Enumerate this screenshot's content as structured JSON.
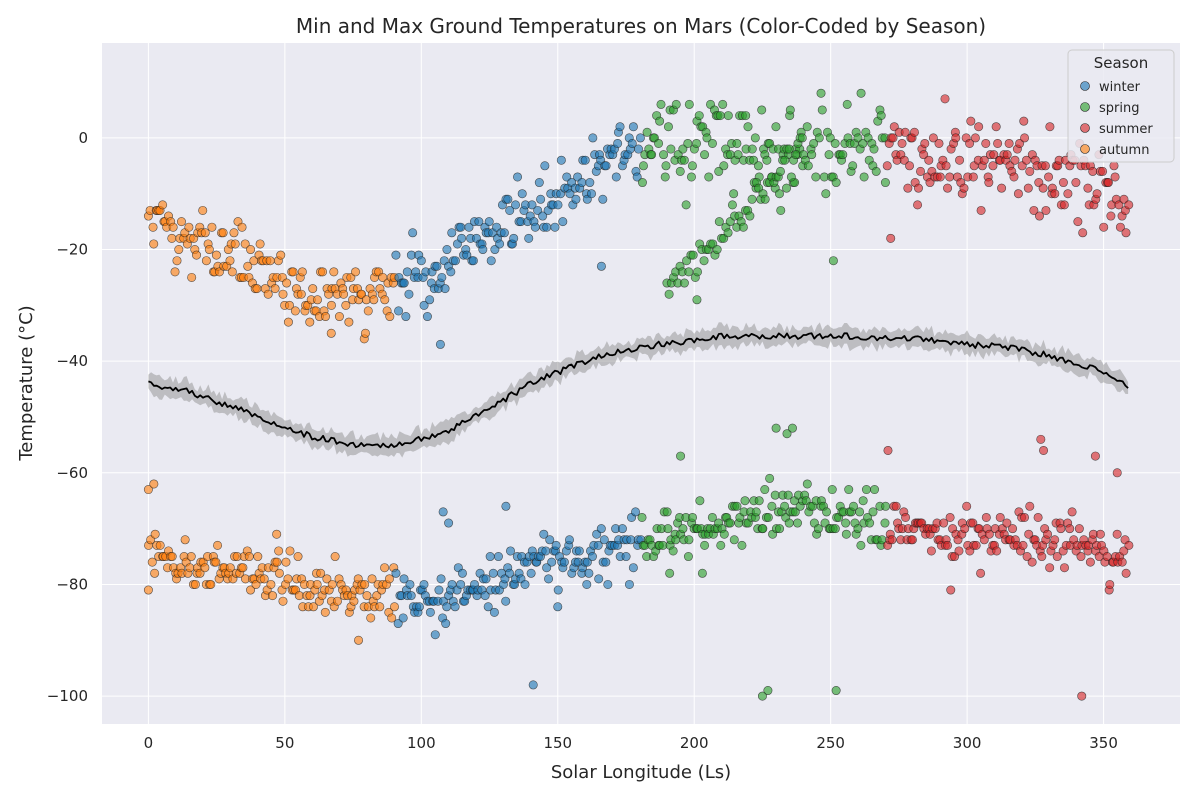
{
  "chart_data": {
    "type": "scatter",
    "title": "Min and Max Ground Temperatures on Mars (Color-Coded by Season)",
    "xlabel": "Solar Longitude (Ls)",
    "ylabel": "Temperature (°C)",
    "xlim": [
      -17,
      378
    ],
    "ylim": [
      -105,
      17
    ],
    "xticks": [
      0,
      50,
      100,
      150,
      200,
      250,
      300,
      350
    ],
    "yticks": [
      -100,
      -80,
      -60,
      -40,
      -20,
      0
    ],
    "grid": true,
    "legend": {
      "title": "Season",
      "placement": "top-right"
    },
    "series": [
      {
        "name": "winter",
        "color": "#1f77b4",
        "ls_range": [
          90,
          180
        ]
      },
      {
        "name": "spring",
        "color": "#2ca02c",
        "ls_range": [
          180,
          270
        ]
      },
      {
        "name": "summer",
        "color": "#d62728",
        "ls_range": [
          270,
          360
        ]
      },
      {
        "name": "autumn",
        "color": "#ff7f0e",
        "ls_range": [
          0,
          90
        ]
      }
    ],
    "max_temp_profile": {
      "ls": [
        0,
        20,
        40,
        60,
        80,
        90,
        100,
        120,
        140,
        160,
        175,
        185,
        200,
        220,
        240,
        260,
        270,
        290,
        310,
        330,
        350,
        359
      ],
      "temp": [
        -15,
        -20,
        -24,
        -28,
        -29,
        -27,
        -25,
        -19,
        -13,
        -7,
        -2,
        0,
        -1,
        -2,
        -2,
        -2,
        -2,
        -4,
        -4,
        -6,
        -9,
        -12
      ]
    },
    "min_temp_profile": {
      "ls": [
        0,
        20,
        40,
        60,
        80,
        90,
        100,
        120,
        140,
        160,
        175,
        185,
        200,
        220,
        240,
        260,
        270,
        290,
        310,
        330,
        350,
        359
      ],
      "temp": [
        -75,
        -77,
        -78,
        -80,
        -81,
        -82,
        -83,
        -80,
        -77,
        -74,
        -73,
        -72,
        -70,
        -68,
        -67,
        -68,
        -70,
        -71,
        -71,
        -72,
        -74,
        -75
      ]
    },
    "mean_line": {
      "ls": [
        0,
        15,
        30,
        45,
        60,
        75,
        90,
        100,
        110,
        120,
        130,
        140,
        150,
        160,
        170,
        180,
        195,
        210,
        225,
        240,
        255,
        270,
        285,
        300,
        315,
        330,
        345,
        359
      ],
      "temp": [
        -44,
        -45.5,
        -48,
        -51,
        -53.5,
        -55,
        -55,
        -54,
        -52.5,
        -49.5,
        -47,
        -44,
        -42,
        -40,
        -38.5,
        -37.5,
        -36.5,
        -35.5,
        -35.5,
        -35.5,
        -35.5,
        -36,
        -36,
        -37,
        -37.5,
        -39,
        -41,
        -44.5
      ],
      "band": 1.5
    },
    "outliers": [
      {
        "series": "autumn",
        "ls": 0,
        "temp": -63
      },
      {
        "series": "autumn",
        "ls": 2,
        "temp": -62
      },
      {
        "series": "autumn",
        "ls": 0,
        "temp": -81
      },
      {
        "series": "autumn",
        "ls": 47,
        "temp": -71
      },
      {
        "series": "autumn",
        "ls": 77,
        "temp": -90
      },
      {
        "series": "autumn",
        "ls": 67,
        "temp": -35
      },
      {
        "series": "winter",
        "ls": 141,
        "temp": -98
      },
      {
        "series": "winter",
        "ls": 108,
        "temp": -67
      },
      {
        "series": "winter",
        "ls": 110,
        "temp": -69
      },
      {
        "series": "winter",
        "ls": 131,
        "temp": -66
      },
      {
        "series": "winter",
        "ls": 150,
        "temp": -84
      },
      {
        "series": "winter",
        "ls": 107,
        "temp": -37
      },
      {
        "series": "winter",
        "ls": 166,
        "temp": -23
      },
      {
        "series": "spring",
        "ls": 225,
        "temp": -100
      },
      {
        "series": "spring",
        "ls": 227,
        "temp": -99
      },
      {
        "series": "spring",
        "ls": 252,
        "temp": -99
      },
      {
        "series": "spring",
        "ls": 230,
        "temp": -52
      },
      {
        "series": "spring",
        "ls": 234,
        "temp": -53
      },
      {
        "series": "spring",
        "ls": 236,
        "temp": -52
      },
      {
        "series": "spring",
        "ls": 251,
        "temp": -22
      },
      {
        "series": "spring",
        "ls": 201,
        "temp": -29
      },
      {
        "series": "spring",
        "ls": 195,
        "temp": -57
      },
      {
        "series": "spring",
        "ls": 191,
        "temp": -78
      },
      {
        "series": "spring",
        "ls": 203,
        "temp": -78
      },
      {
        "series": "summer",
        "ls": 271,
        "temp": -56
      },
      {
        "series": "summer",
        "ls": 327,
        "temp": -54
      },
      {
        "series": "summer",
        "ls": 328,
        "temp": -56
      },
      {
        "series": "summer",
        "ls": 347,
        "temp": -57
      },
      {
        "series": "summer",
        "ls": 355,
        "temp": -60
      },
      {
        "series": "summer",
        "ls": 342,
        "temp": -100
      },
      {
        "series": "summer",
        "ls": 294,
        "temp": -81
      },
      {
        "series": "summer",
        "ls": 272,
        "temp": -18
      }
    ]
  }
}
